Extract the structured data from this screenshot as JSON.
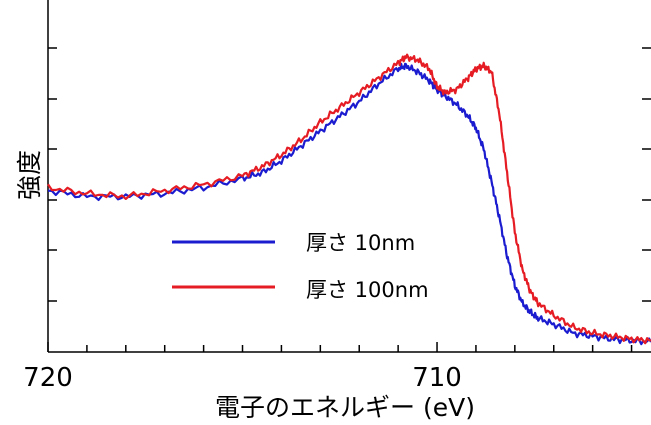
{
  "chart_data": {
    "type": "line",
    "title": "",
    "xlabel": "電子のエネルギー (eV)",
    "ylabel": "強度",
    "xlim": [
      720,
      704.5
    ],
    "x_reversed": true,
    "y_unit": "arbitrary",
    "ylim": [
      0,
      1
    ],
    "x_ticks": [
      720,
      710
    ],
    "y_ticks_labeled": false,
    "grid": false,
    "legend": "center-left",
    "series": [
      {
        "name": "厚さ 10nm",
        "color": "#1b1bcf",
        "x": [
          720,
          719,
          718,
          717,
          716,
          715,
          714.5,
          714,
          713.5,
          713,
          712.5,
          712,
          711.5,
          711,
          710.8,
          710.5,
          710.2,
          710,
          709.8,
          709.5,
          709.2,
          709,
          708.8,
          708.6,
          708.4,
          708.2,
          708,
          707.8,
          707.6,
          707.4,
          707,
          706.5,
          706,
          705.5,
          705,
          704.5
        ],
        "values": [
          0.52,
          0.5,
          0.5,
          0.51,
          0.53,
          0.56,
          0.58,
          0.62,
          0.67,
          0.72,
          0.77,
          0.82,
          0.88,
          0.93,
          0.94,
          0.92,
          0.89,
          0.86,
          0.84,
          0.81,
          0.77,
          0.73,
          0.66,
          0.55,
          0.43,
          0.3,
          0.2,
          0.14,
          0.11,
          0.09,
          0.07,
          0.04,
          0.03,
          0.02,
          0.015,
          0.01
        ]
      },
      {
        "name": "厚さ 100nm",
        "color": "#e51c23",
        "x": [
          720,
          719,
          718,
          717,
          716,
          715,
          714.5,
          714,
          713.5,
          713,
          712.5,
          712,
          711.5,
          711,
          710.8,
          710.5,
          710.2,
          710,
          709.8,
          709.5,
          709.2,
          709,
          708.8,
          708.6,
          708.4,
          708.2,
          708,
          707.8,
          707.6,
          707.4,
          707,
          706.5,
          706,
          705.5,
          705,
          704.5
        ],
        "values": [
          0.53,
          0.51,
          0.5,
          0.52,
          0.54,
          0.57,
          0.6,
          0.64,
          0.69,
          0.75,
          0.8,
          0.85,
          0.9,
          0.95,
          0.97,
          0.96,
          0.93,
          0.87,
          0.85,
          0.86,
          0.9,
          0.93,
          0.94,
          0.92,
          0.78,
          0.58,
          0.38,
          0.25,
          0.18,
          0.14,
          0.1,
          0.06,
          0.04,
          0.03,
          0.02,
          0.015
        ]
      }
    ]
  }
}
